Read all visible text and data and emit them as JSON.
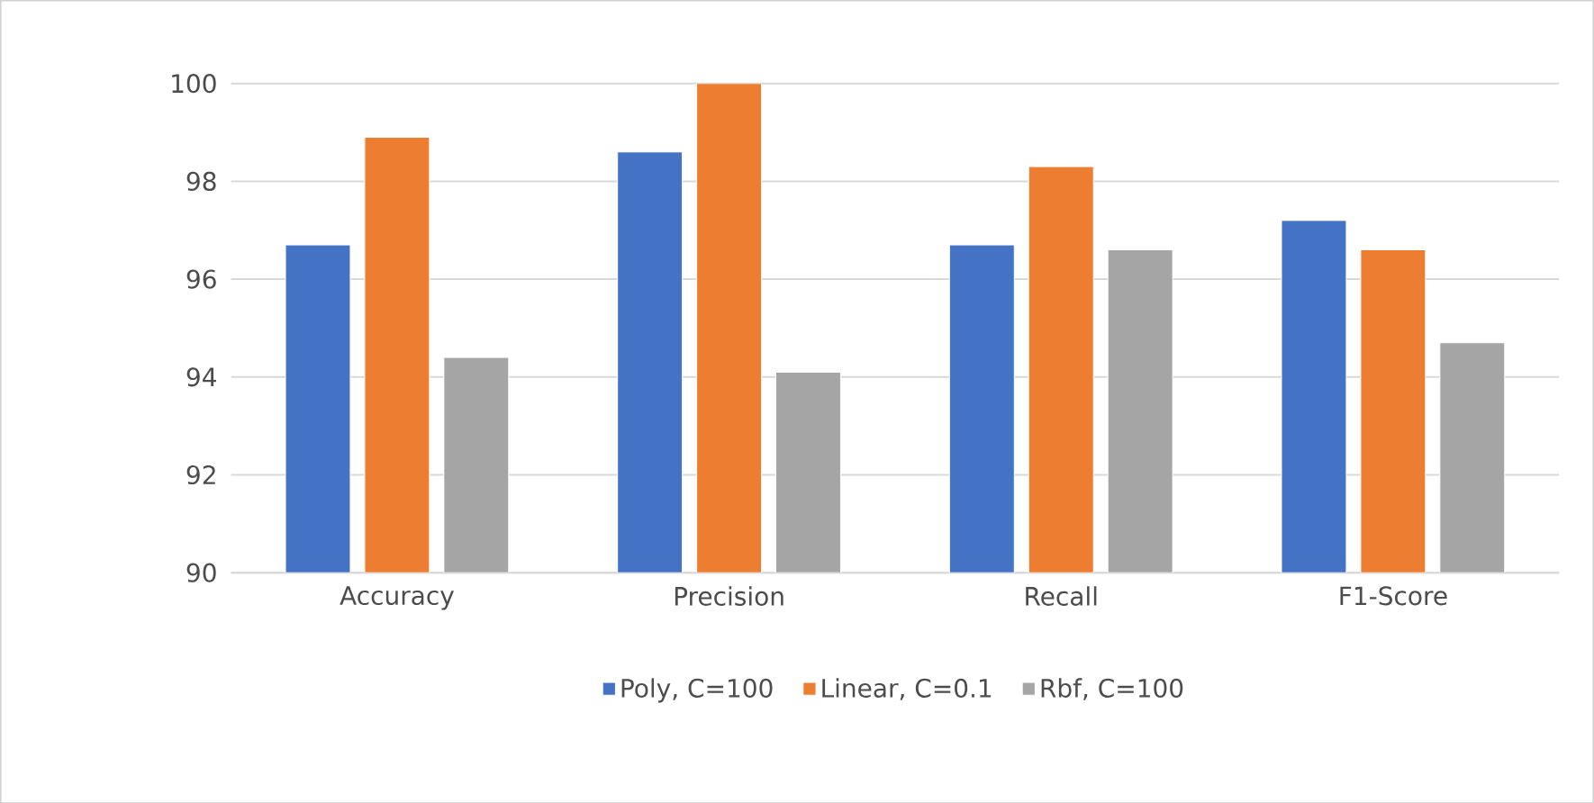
{
  "chart_data": {
    "type": "bar",
    "categories": [
      "Accuracy",
      "Precision",
      "Recall",
      "F1-Score"
    ],
    "series": [
      {
        "name": "Poly, C=100",
        "color": "#4472c4",
        "values": [
          96.7,
          98.6,
          96.7,
          97.2
        ]
      },
      {
        "name": "Linear, C=0.1",
        "color": "#ed7d31",
        "values": [
          98.9,
          100,
          98.3,
          96.6
        ]
      },
      {
        "name": "Rbf, C=100",
        "color": "#a5a5a5",
        "values": [
          94.4,
          94.1,
          96.6,
          94.7
        ]
      }
    ],
    "ylim": [
      90,
      100
    ],
    "yticks": [
      90,
      92,
      94,
      96,
      98,
      100
    ],
    "grid": "y",
    "legend": "bottom"
  }
}
